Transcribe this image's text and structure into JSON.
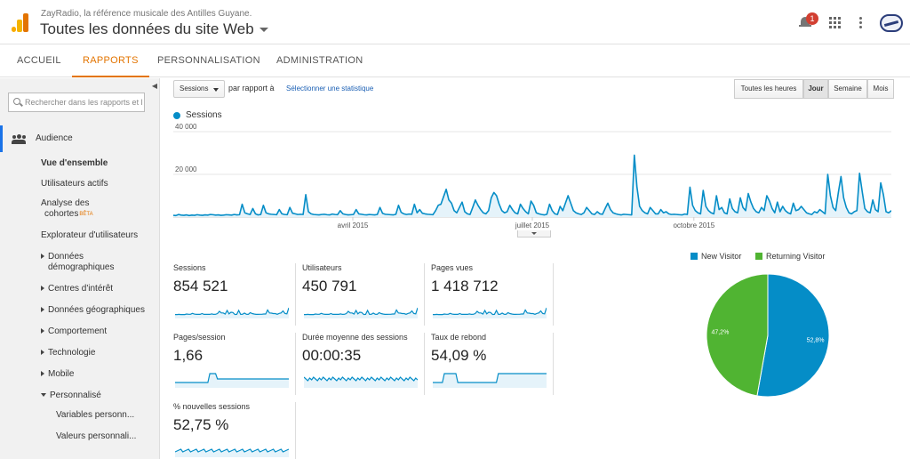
{
  "header": {
    "subtitle": "ZayRadio, la référence musicale des Antilles Guyane.",
    "title": "Toutes les données du site Web",
    "notifications": "1",
    "icons": [
      "bell-icon",
      "apps-grid-icon",
      "more-vert-icon",
      "avatar"
    ]
  },
  "tabs": [
    {
      "label": "ACCUEIL"
    },
    {
      "label": "RAPPORTS"
    },
    {
      "label": "PERSONNALISATION"
    },
    {
      "label": "ADMINISTRATION"
    }
  ],
  "sidebar": {
    "search_placeholder": "Rechercher dans les rapports et l",
    "audience": "Audience",
    "items": {
      "overview": "Vue d'ensemble",
      "active_users": "Utilisateurs actifs",
      "cohort_l1": "Analyse des",
      "cohort_l2": "cohortes",
      "beta": "BÊTA",
      "explorer": "Explorateur d'utilisateurs",
      "demo_l1": "Données",
      "demo_l2": "démographiques",
      "interests": "Centres d'intérêt",
      "geo": "Données géographiques",
      "behavior": "Comportement",
      "tech": "Technologie",
      "mobile": "Mobile",
      "custom": "Personnalisé",
      "custom_vars": "Variables personn...",
      "custom_vals": "Valeurs personnali..."
    }
  },
  "toolbar": {
    "metric": "Sessions",
    "compare": "par rapport à",
    "select_stat": "Sélectionner une statistique",
    "granularity": [
      "Toutes les heures",
      "Jour",
      "Semaine",
      "Mois"
    ],
    "selected": "Jour"
  },
  "chart_data": [
    {
      "type": "area",
      "title": "",
      "series": [
        {
          "name": "Sessions",
          "values": [
            800,
            700,
            1200,
            900,
            800,
            1000,
            700,
            900,
            800,
            1100,
            900,
            800,
            1000,
            900,
            1200,
            1100,
            900,
            1000,
            800,
            900,
            1100,
            1000,
            900,
            1200,
            1000,
            1100,
            6000,
            2000,
            1500,
            1200,
            4000,
            1500,
            1000,
            1200,
            5500,
            2000,
            1500,
            1300,
            1200,
            1100,
            3500,
            1500,
            1200,
            1100,
            4500,
            1800,
            1500,
            1200,
            1300,
            1200,
            10500,
            2500,
            1500,
            1200,
            1100,
            1000,
            1200,
            1300,
            1100,
            1000,
            1400,
            1200,
            1100,
            3000,
            1500,
            1200,
            1000,
            1100,
            1200,
            3500,
            1500,
            1300,
            1100,
            1000,
            1200,
            1100,
            1000,
            1200,
            4500,
            1700,
            1300,
            1200,
            1100,
            1000,
            1300,
            5500,
            2200,
            1500,
            1200,
            1400,
            1300,
            6000,
            2000,
            3500,
            1800,
            1500,
            1300,
            1200,
            1100,
            3000,
            5500,
            6000,
            9500,
            13000,
            8000,
            6500,
            3000,
            2000,
            4500,
            7000,
            2500,
            1500,
            1200,
            4500,
            8000,
            5500,
            3500,
            2000,
            1500,
            3000,
            9000,
            11500,
            10000,
            6000,
            3000,
            2000,
            2500,
            5500,
            3500,
            2000,
            1500,
            6000,
            4000,
            2500,
            1500,
            7500,
            5500,
            2000,
            1500,
            1200,
            1000,
            1300,
            6000,
            3000,
            1500,
            1200,
            5000,
            3000,
            6500,
            10000,
            6500,
            3000,
            2000,
            1500,
            1200,
            2000,
            4500,
            3000,
            1500,
            1200,
            2500,
            1500,
            1300,
            4000,
            6500,
            3500,
            2000,
            1500,
            1200,
            1000,
            1300,
            1200,
            1100,
            1000,
            29000,
            14000,
            5000,
            3000,
            2000,
            1500,
            4500,
            3000,
            1500,
            1500,
            3500,
            2000,
            2500,
            1500,
            1200,
            1300,
            1200,
            1100,
            1000,
            1400,
            1200,
            14000,
            5500,
            3000,
            2000,
            1500,
            12500,
            5000,
            3000,
            2000,
            1500,
            10000,
            3500,
            4500,
            2000,
            1500,
            8500,
            4000,
            2500,
            2000,
            9000,
            4500,
            3000,
            11000,
            7000,
            4000,
            2500,
            2000,
            4500,
            3000,
            10000,
            7500,
            4000,
            2000,
            7000,
            2500,
            5000,
            3000,
            2000,
            1500,
            6500,
            3000,
            3500,
            5000,
            3500,
            2000,
            1500,
            1200,
            2500,
            2000,
            3500,
            2500,
            1500,
            20000,
            10000,
            4500,
            3000,
            11500,
            19000,
            9000,
            4500,
            2000,
            1500,
            2500,
            3000,
            20500,
            12000,
            4000,
            2500,
            2000,
            8000,
            3500,
            2500,
            16000,
            10500,
            2500,
            2000,
            3000
          ]
        }
      ],
      "x_ticks": [
        "avril 2015",
        "juillet 2015",
        "octobre 2015"
      ],
      "y_ticks": [
        "20 000",
        "40 000"
      ],
      "ylim": [
        0,
        40000
      ],
      "colors": {
        "line": "#058dc7",
        "fill": "#e5f3fa"
      }
    },
    {
      "type": "pie",
      "labels": [
        "New Visitor",
        "Returning Visitor"
      ],
      "values": [
        52.8,
        47.2
      ],
      "value_labels": [
        "52,8%",
        "47,2%"
      ],
      "colors": [
        "#058dc7",
        "#50b432"
      ]
    }
  ],
  "scorecards": [
    {
      "title": "Sessions",
      "value": "854 521"
    },
    {
      "title": "Utilisateurs",
      "value": "450 791"
    },
    {
      "title": "Pages vues",
      "value": "1 418 712"
    },
    {
      "title": "Pages/session",
      "value": "1,66"
    },
    {
      "title": "Durée moyenne des sessions",
      "value": "00:00:35"
    },
    {
      "title": "Taux de rebond",
      "value": "54,09 %"
    },
    {
      "title": "% nouvelles sessions",
      "value": "52,75 %"
    }
  ]
}
